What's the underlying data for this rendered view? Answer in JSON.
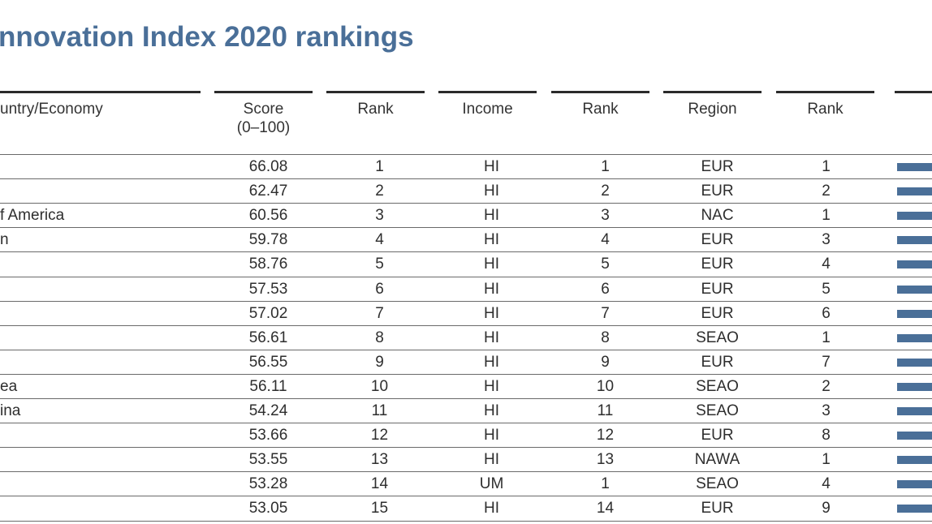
{
  "title": "nnovation Index 2020 rankings",
  "headers": {
    "country": "untry/Economy",
    "score": "Score\n(0–100)",
    "rank_overall": "Rank",
    "income": "Income",
    "rank_income": "Rank",
    "region": "Region",
    "rank_region": "Rank"
  },
  "rows": [
    {
      "country": "",
      "score": "66.08",
      "rank": "1",
      "income": "HI",
      "income_rank": "1",
      "region": "EUR",
      "region_rank": "1"
    },
    {
      "country": "",
      "score": "62.47",
      "rank": "2",
      "income": "HI",
      "income_rank": "2",
      "region": "EUR",
      "region_rank": "2"
    },
    {
      "country": "f America",
      "score": "60.56",
      "rank": "3",
      "income": "HI",
      "income_rank": "3",
      "region": "NAC",
      "region_rank": "1"
    },
    {
      "country": "n",
      "score": "59.78",
      "rank": "4",
      "income": "HI",
      "income_rank": "4",
      "region": "EUR",
      "region_rank": "3"
    },
    {
      "country": "",
      "score": "58.76",
      "rank": "5",
      "income": "HI",
      "income_rank": "5",
      "region": "EUR",
      "region_rank": "4"
    },
    {
      "country": "",
      "score": "57.53",
      "rank": "6",
      "income": "HI",
      "income_rank": "6",
      "region": "EUR",
      "region_rank": "5"
    },
    {
      "country": "",
      "score": "57.02",
      "rank": "7",
      "income": "HI",
      "income_rank": "7",
      "region": "EUR",
      "region_rank": "6"
    },
    {
      "country": "",
      "score": "56.61",
      "rank": "8",
      "income": "HI",
      "income_rank": "8",
      "region": "SEAO",
      "region_rank": "1"
    },
    {
      "country": "",
      "score": "56.55",
      "rank": "9",
      "income": "HI",
      "income_rank": "9",
      "region": "EUR",
      "region_rank": "7"
    },
    {
      "country": "ea",
      "score": "56.11",
      "rank": "10",
      "income": "HI",
      "income_rank": "10",
      "region": "SEAO",
      "region_rank": "2"
    },
    {
      "country": "ina",
      "score": "54.24",
      "rank": "11",
      "income": "HI",
      "income_rank": "11",
      "region": "SEAO",
      "region_rank": "3"
    },
    {
      "country": "",
      "score": "53.66",
      "rank": "12",
      "income": "HI",
      "income_rank": "12",
      "region": "EUR",
      "region_rank": "8"
    },
    {
      "country": "",
      "score": "53.55",
      "rank": "13",
      "income": "HI",
      "income_rank": "13",
      "region": "NAWA",
      "region_rank": "1"
    },
    {
      "country": "",
      "score": "53.28",
      "rank": "14",
      "income": "UM",
      "income_rank": "1",
      "region": "SEAO",
      "region_rank": "4"
    },
    {
      "country": "",
      "score": "53.05",
      "rank": "15",
      "income": "HI",
      "income_rank": "14",
      "region": "EUR",
      "region_rank": "9"
    }
  ],
  "colors": {
    "accent": "#4a6f98",
    "text": "#2e2e2e",
    "rule": "#2b2b2b"
  }
}
